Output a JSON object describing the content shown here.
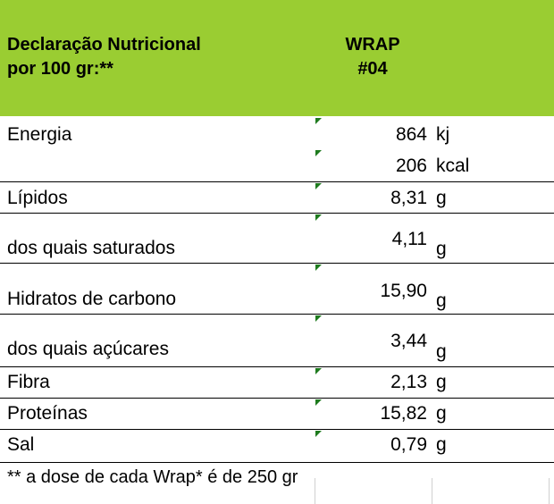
{
  "header": {
    "title_line1": "Declaração Nutricional",
    "title_line2": "por 100 gr:**",
    "product_line1": "WRAP",
    "product_line2": "#04"
  },
  "rows": [
    {
      "label": "Energia",
      "value": "864",
      "unit": "kj"
    },
    {
      "label": "",
      "value": "206",
      "unit": "kcal"
    },
    {
      "label": "Lípidos",
      "value": "8,31",
      "unit": "g"
    },
    {
      "label": "dos quais saturados",
      "value": "4,11",
      "unit": "g"
    },
    {
      "label": "Hidratos de carbono",
      "value": "15,90",
      "unit": "g"
    },
    {
      "label": "dos quais açúcares",
      "value": "3,44",
      "unit": "g"
    },
    {
      "label": "Fibra",
      "value": "2,13",
      "unit": "g"
    },
    {
      "label": "Proteínas",
      "value": "15,82",
      "unit": "g"
    },
    {
      "label": "Sal",
      "value": "0,79",
      "unit": "g"
    }
  ],
  "footnote": "** a dose de cada Wrap* é de 250 gr",
  "colors": {
    "header_bg": "#9acd32",
    "cell_marker": "#1e7b1e"
  }
}
